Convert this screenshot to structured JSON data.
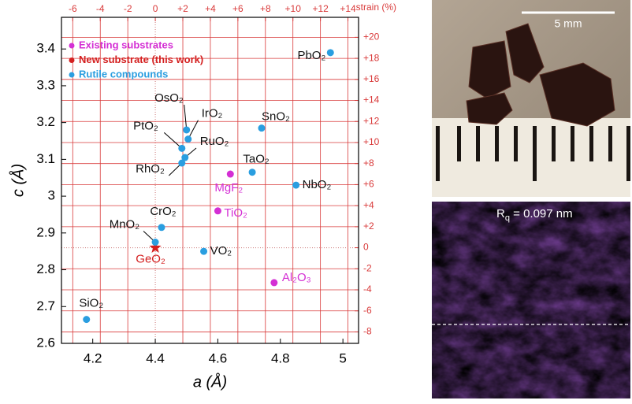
{
  "chart_data": {
    "type": "scatter",
    "xlabel": "a (Å)",
    "ylabel": "c (Å)",
    "x2label": "strain (%)",
    "xlim": [
      4.1,
      5.05
    ],
    "ylim": [
      2.6,
      3.486
    ],
    "xticks": [
      4.2,
      4.4,
      4.6,
      4.8,
      5
    ],
    "yticks": [
      2.6,
      2.7,
      2.8,
      2.9,
      3,
      3.1,
      3.2,
      3.3,
      3.4
    ],
    "x2lim": [
      -6.82,
      14.77
    ],
    "y2lim": [
      -9.09,
      21.9
    ],
    "x2ticks": [
      -6,
      -4,
      -2,
      0,
      {
        "value": 2,
        "label": "+2"
      },
      {
        "value": 4,
        "label": "+4"
      },
      {
        "value": 6,
        "label": "+6"
      },
      {
        "value": 8,
        "label": "+8"
      },
      {
        "value": 10,
        "label": "+10"
      },
      {
        "value": 12,
        "label": "+12"
      },
      {
        "value": 14,
        "label": "+14"
      }
    ],
    "y2ticks": [
      -8,
      -6,
      -4,
      -2,
      0,
      {
        "value": 2,
        "label": "+2"
      },
      {
        "value": 4,
        "label": "+4"
      },
      {
        "value": 6,
        "label": "+6"
      },
      {
        "value": 8,
        "label": "+8"
      },
      {
        "value": 10,
        "label": "+10"
      },
      {
        "value": 12,
        "label": "+12"
      },
      {
        "value": 14,
        "label": "+14"
      },
      {
        "value": 16,
        "label": "+16"
      },
      {
        "value": 18,
        "label": "+18"
      },
      {
        "value": 20,
        "label": "+20"
      }
    ],
    "grid": true,
    "grid_color": "#d93a3a",
    "legend": "upper left",
    "series": [
      {
        "name": "Existing substrates",
        "color": "#d42fd4",
        "label_color": "#d42fd4",
        "marker": "circle",
        "labels": [
          "MgF₂",
          "TiO₂",
          "Al₂O₃"
        ],
        "x": [
          4.64,
          4.6,
          4.78
        ],
        "values": [
          3.06,
          2.96,
          2.765
        ]
      },
      {
        "name": "New substrate (this work)",
        "color": "#d42020",
        "label_color": "#d42020",
        "marker": "star",
        "labels": [
          "GeO₂"
        ],
        "x": [
          4.4
        ],
        "values": [
          2.86
        ]
      },
      {
        "name": "Rutile compounds",
        "color": "#2a9ee0",
        "label_color": "#111111",
        "marker": "circle",
        "labels": [
          "PbO₂",
          "SnO₂",
          "NbO₂",
          "TaO₂",
          "OsO₂",
          "IrO₂",
          "PtO₂",
          "RuO₂",
          "RhO₂",
          "CrO₂",
          "MnO₂",
          "VO₂",
          "SiO₂"
        ],
        "x": [
          4.96,
          4.74,
          4.85,
          4.71,
          4.5,
          4.505,
          4.485,
          4.495,
          4.485,
          4.42,
          4.4,
          4.555,
          4.18
        ],
        "values": [
          3.39,
          3.185,
          3.03,
          3.065,
          3.18,
          3.155,
          3.13,
          3.105,
          3.09,
          2.915,
          2.875,
          2.85,
          2.665
        ]
      }
    ]
  },
  "images": {
    "photo_scale_bar": "5 mm",
    "afm_symbol": "R",
    "afm_subscript": "q",
    "afm_value": " = 0.097 nm"
  }
}
